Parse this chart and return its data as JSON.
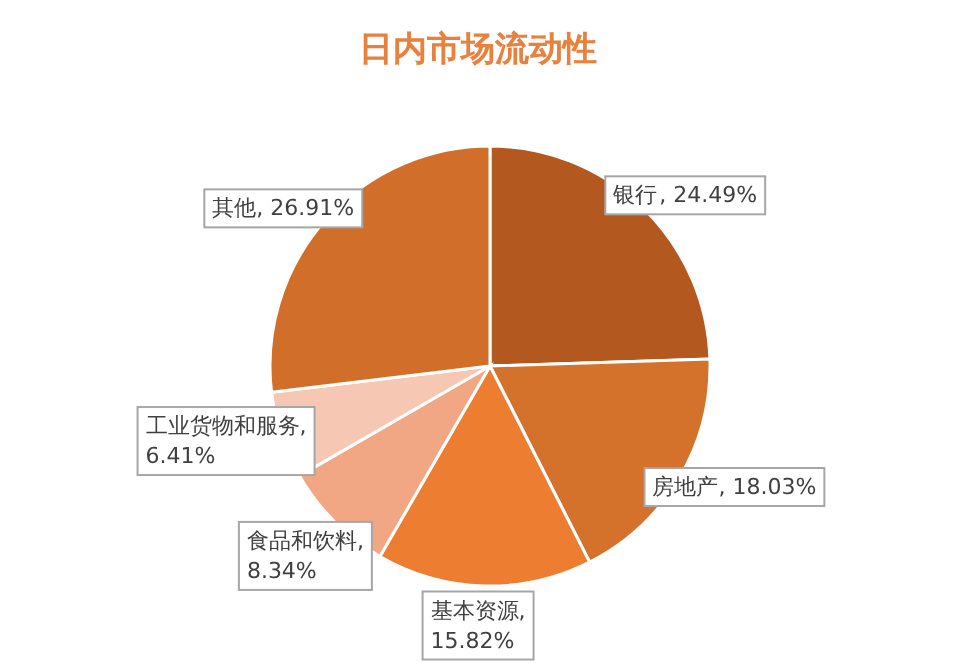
{
  "chart_data": {
    "type": "pie",
    "title": "日内市场流动性",
    "categories": [
      "银行",
      "房地产",
      "基本资源",
      "食品和饮料",
      "工业货物和服务",
      "其他"
    ],
    "values": [
      24.49,
      18.03,
      15.82,
      8.34,
      6.41,
      26.91
    ],
    "colors": [
      "#b3591f",
      "#d4722b",
      "#ed7d31",
      "#f1a783",
      "#f6c7b3",
      "#d06e2a"
    ],
    "value_labels": [
      ", 24.49%",
      ", 18.03%",
      ",\n15.82%",
      ",\n8.34%",
      ",\n6.41%",
      ", 26.91%"
    ],
    "legend": false
  }
}
